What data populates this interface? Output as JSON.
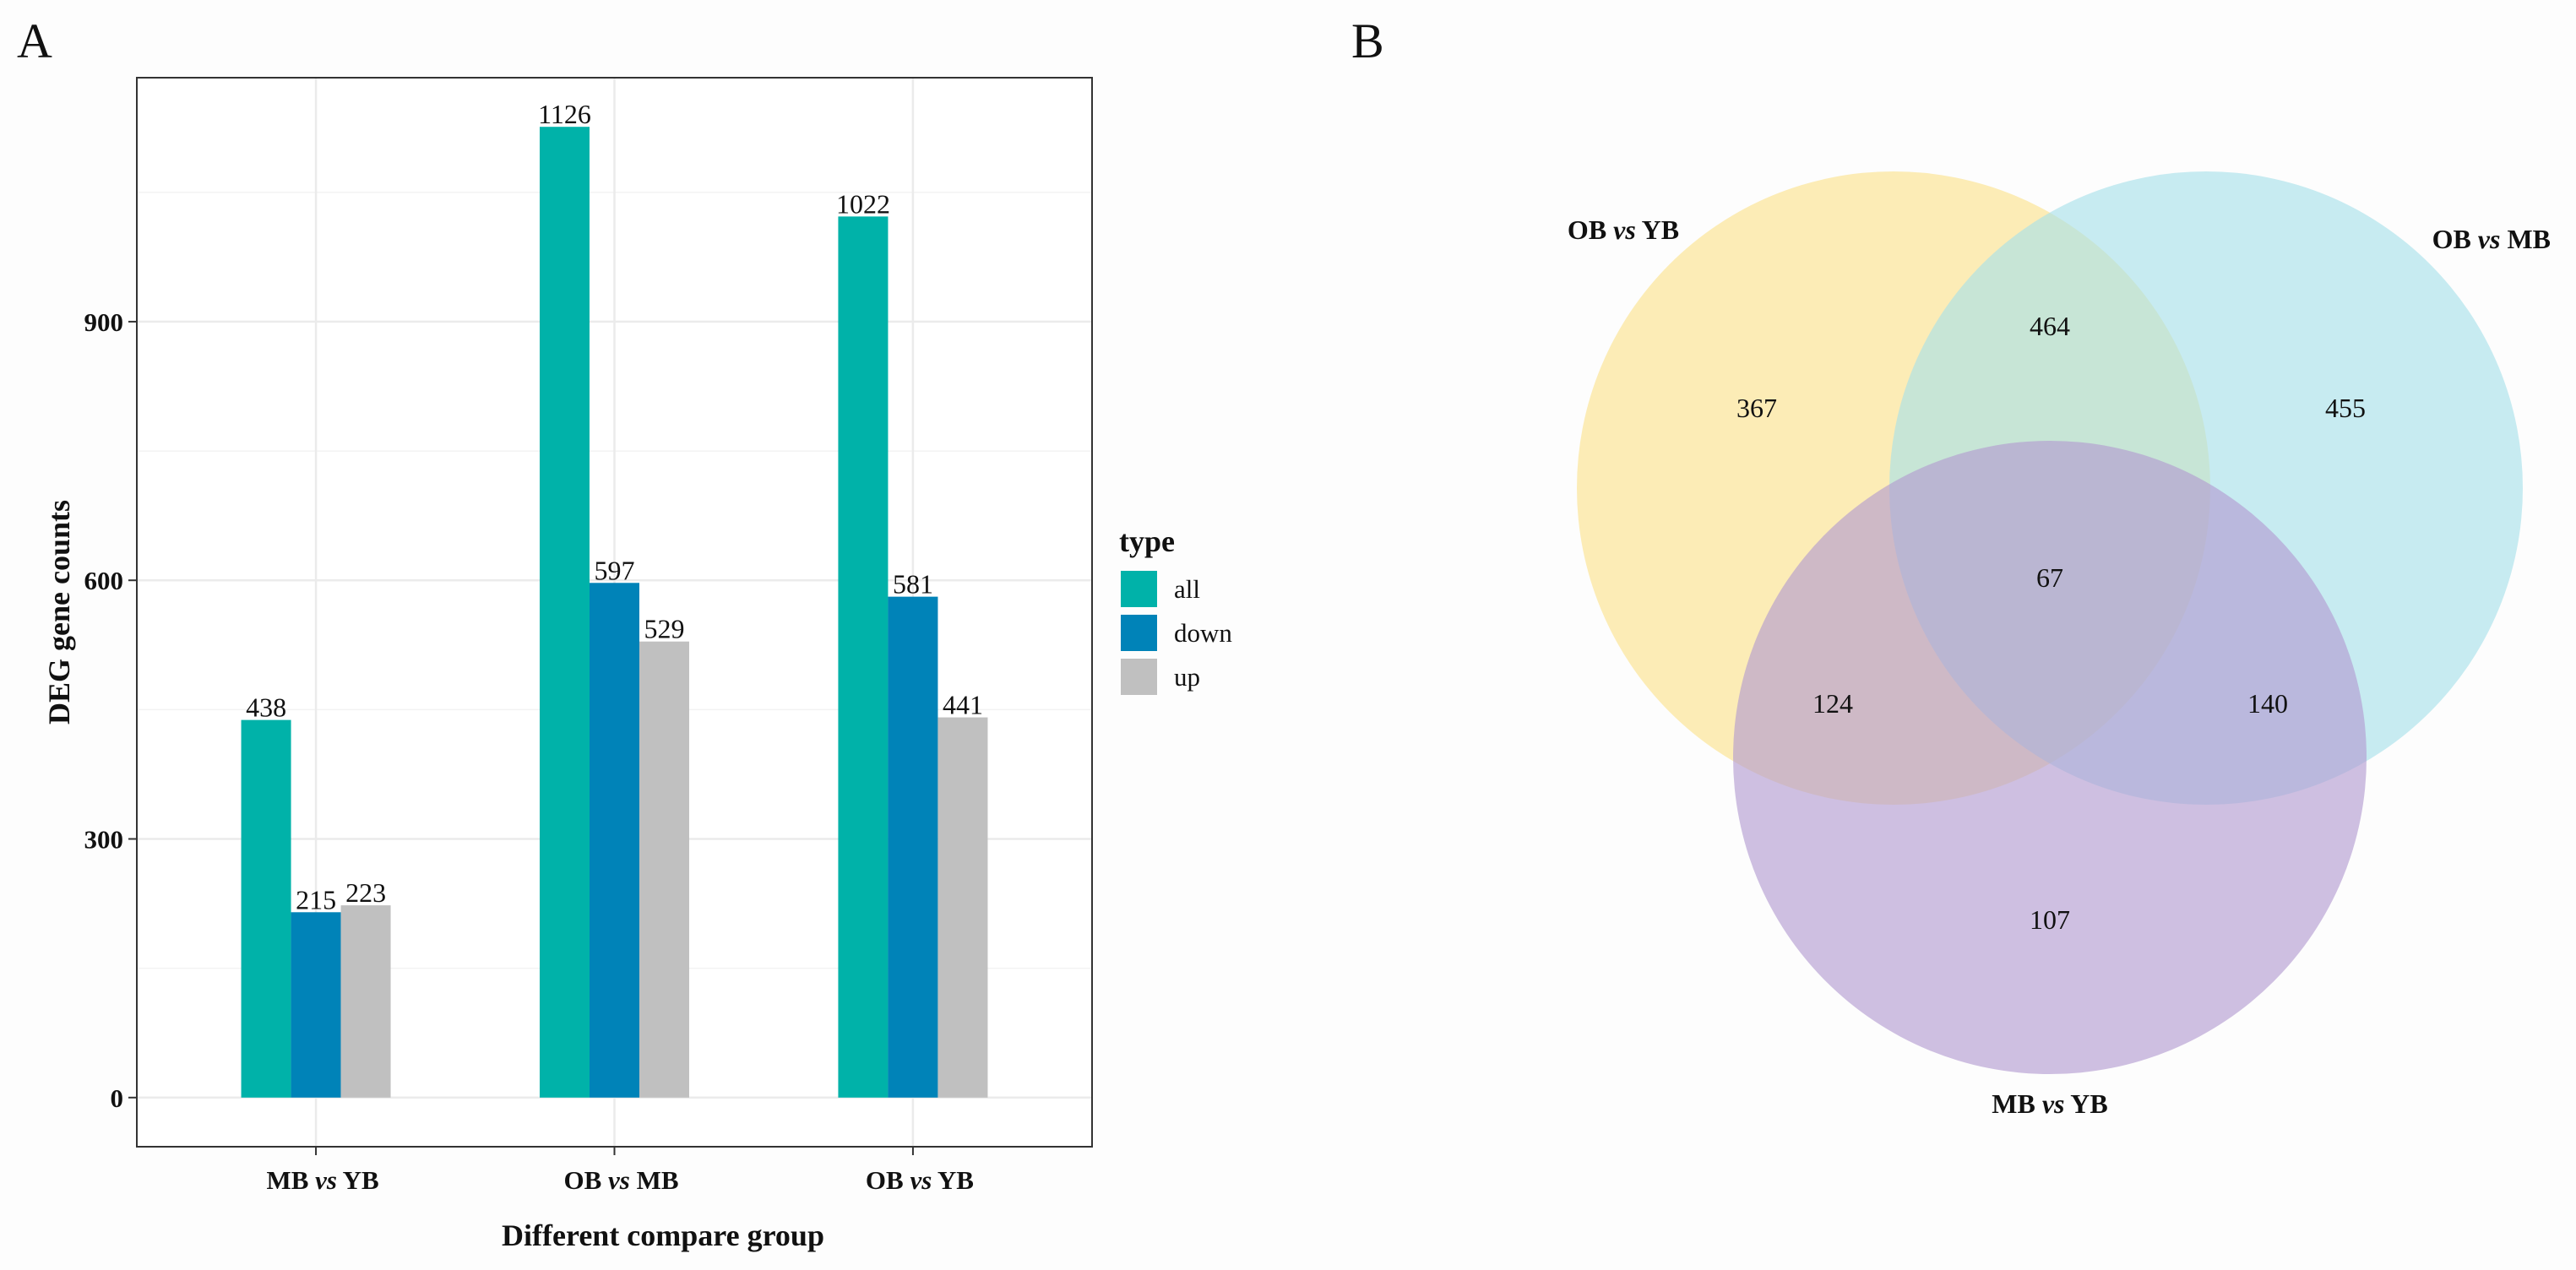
{
  "panels": {
    "a": "A",
    "b": "B"
  },
  "chart_data": [
    {
      "type": "bar",
      "categories": [
        {
          "pre": "MB ",
          "mid": "vs",
          "post": " YB"
        },
        {
          "pre": "OB ",
          "mid": "vs",
          "post": " MB"
        },
        {
          "pre": "OB ",
          "mid": "vs",
          "post": " YB"
        }
      ],
      "series": [
        {
          "name": "all",
          "color": "#00b2a9",
          "values": [
            438,
            1126,
            1022
          ]
        },
        {
          "name": "down",
          "color": "#0083b8",
          "values": [
            215,
            597,
            581
          ]
        },
        {
          "name": "up",
          "color": "#c0c0c0",
          "values": [
            223,
            529,
            441
          ]
        }
      ],
      "xlabel": "Different compare group",
      "ylabel": "DEG gene counts",
      "yticks": [
        0,
        300,
        600,
        900
      ],
      "ylim": [
        -57,
        1183
      ],
      "grid": true,
      "legend": {
        "title": "type",
        "placement": "right"
      }
    },
    {
      "type": "venn",
      "sets": [
        {
          "pre": "OB ",
          "mid": "vs",
          "post": " YB",
          "color": "#fbe28b"
        },
        {
          "pre": "OB ",
          "mid": "vs",
          "post": " MB",
          "color": "#a6e0ea"
        },
        {
          "pre": "MB ",
          "mid": "vs",
          "post": " YB",
          "color": "#b29ad1"
        }
      ],
      "regions": [
        {
          "sets": [
            "OB vs YB"
          ],
          "value": 367
        },
        {
          "sets": [
            "OB vs MB"
          ],
          "value": 455
        },
        {
          "sets": [
            "MB vs YB"
          ],
          "value": 107
        },
        {
          "sets": [
            "OB vs YB",
            "OB vs MB"
          ],
          "value": 464
        },
        {
          "sets": [
            "OB vs YB",
            "MB vs YB"
          ],
          "value": 124
        },
        {
          "sets": [
            "OB vs MB",
            "MB vs YB"
          ],
          "value": 140
        },
        {
          "sets": [
            "OB vs YB",
            "OB vs MB",
            "MB vs YB"
          ],
          "value": 67
        }
      ]
    }
  ]
}
